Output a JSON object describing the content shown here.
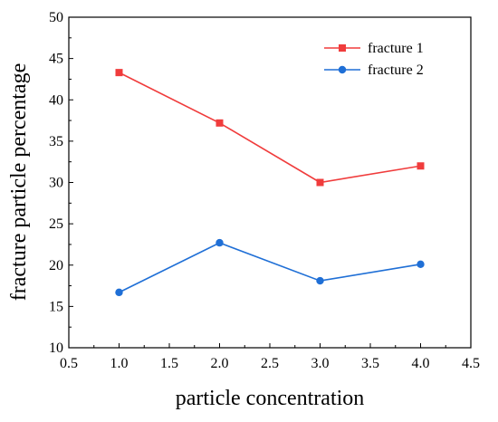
{
  "chart_data": {
    "type": "line",
    "xlabel": "particle concentration",
    "ylabel": "fracture particle percentage",
    "xlim": [
      0.5,
      4.5
    ],
    "ylim": [
      10,
      50
    ],
    "xticks": [
      "0.5",
      "1.0",
      "1.5",
      "2.0",
      "2.5",
      "3.0",
      "3.5",
      "4.0",
      "4.5"
    ],
    "yticks": [
      "10",
      "15",
      "20",
      "25",
      "30",
      "35",
      "40",
      "45",
      "50"
    ],
    "x": [
      1.0,
      2.0,
      3.0,
      4.0
    ],
    "grid": false,
    "legend_position": "top-right",
    "series": [
      {
        "name": "fracture 1",
        "values": [
          43.3,
          37.2,
          30.0,
          32.0
        ],
        "color": "#f03c3c",
        "marker": "square"
      },
      {
        "name": "fracture 2",
        "values": [
          16.7,
          22.7,
          18.1,
          20.1
        ],
        "color": "#1f6fd6",
        "marker": "circle"
      }
    ]
  }
}
